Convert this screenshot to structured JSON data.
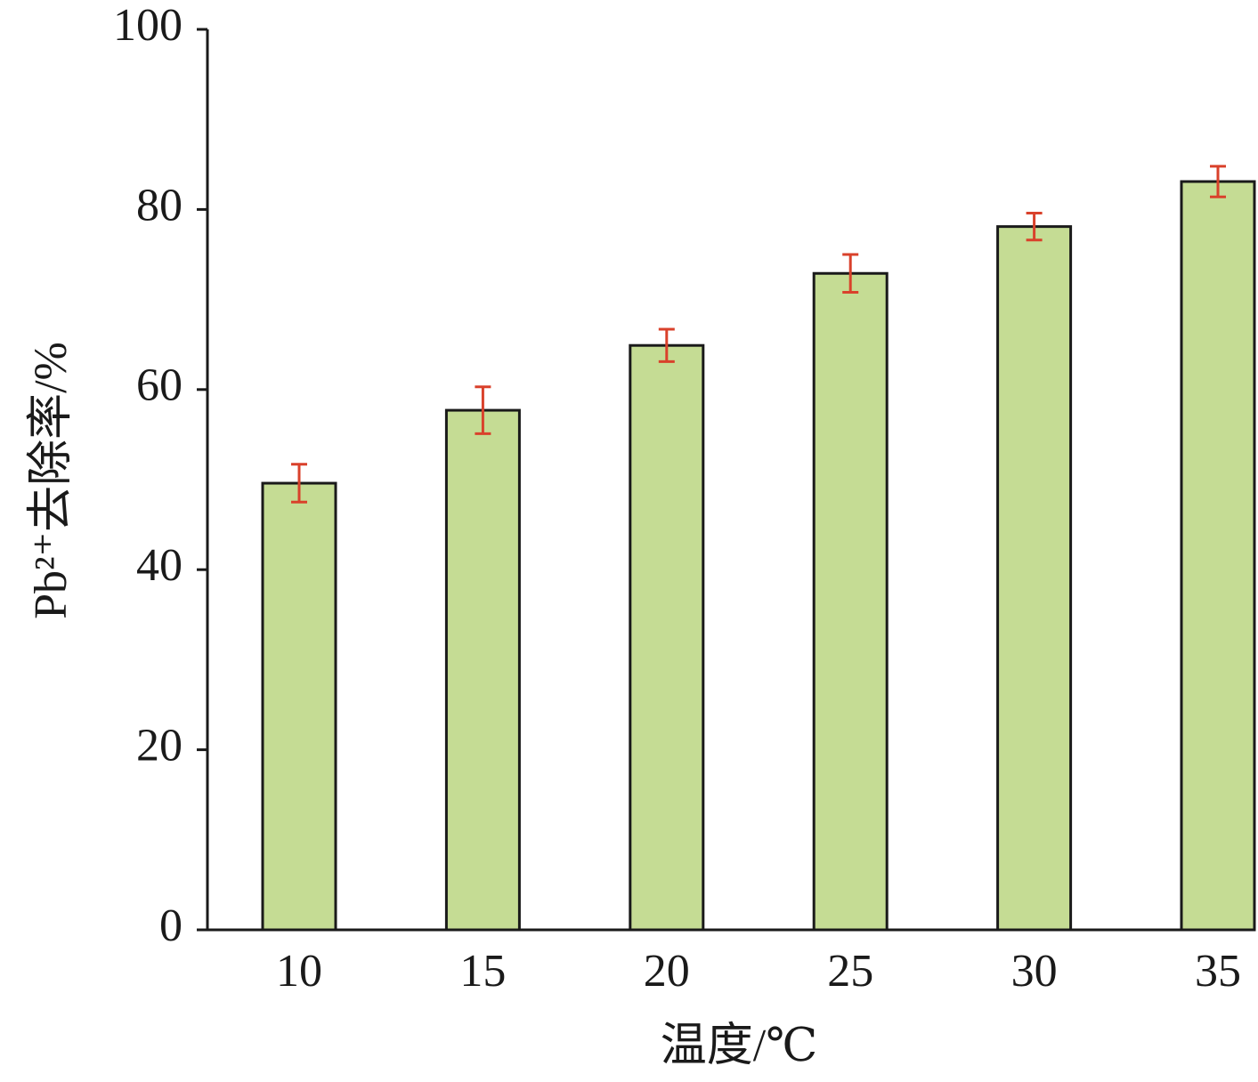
{
  "chart_data": {
    "type": "bar",
    "x_label": "温度/℃",
    "y_label": "Pb²⁺去除率/%",
    "categories": [
      "10",
      "15",
      "20",
      "25",
      "30",
      "35"
    ],
    "values": [
      49.6,
      57.7,
      64.9,
      72.9,
      78.1,
      83.1
    ],
    "errors": [
      2.1,
      2.6,
      1.8,
      2.1,
      1.5,
      1.7
    ],
    "color": "#c5dc94",
    "error_color": "#d9412b",
    "ylim": [
      0,
      100
    ],
    "yticks": [
      0,
      20,
      40,
      60,
      80,
      100
    ],
    "grid": false
  }
}
